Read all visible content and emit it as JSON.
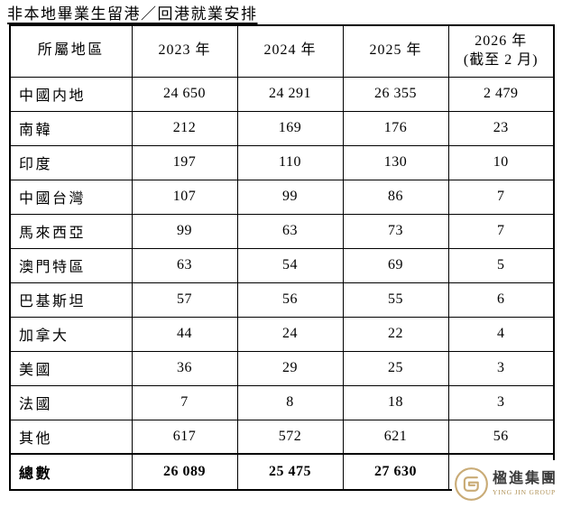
{
  "title": "非本地畢業生留港／回港就業安排",
  "table": {
    "header": {
      "region": "所屬地區",
      "y2023": "2023 年",
      "y2024": "2024 年",
      "y2025": "2025 年",
      "y2026_line1": "2026 年",
      "y2026_line2": "(截至 2 月)"
    },
    "rows": [
      {
        "region": "中國内地",
        "values": [
          "24 650",
          "24 291",
          "26 355",
          "2 479"
        ]
      },
      {
        "region": "南韓",
        "values": [
          "212",
          "169",
          "176",
          "23"
        ]
      },
      {
        "region": "印度",
        "values": [
          "197",
          "110",
          "130",
          "10"
        ]
      },
      {
        "region": "中國台灣",
        "values": [
          "107",
          "99",
          "86",
          "7"
        ]
      },
      {
        "region": "馬來西亞",
        "values": [
          "99",
          "63",
          "73",
          "7"
        ]
      },
      {
        "region": "澳門特區",
        "values": [
          "63",
          "54",
          "69",
          "5"
        ]
      },
      {
        "region": "巴基斯坦",
        "values": [
          "57",
          "56",
          "55",
          "6"
        ]
      },
      {
        "region": "加拿大",
        "values": [
          "44",
          "24",
          "22",
          "4"
        ]
      },
      {
        "region": "美國",
        "values": [
          "36",
          "29",
          "25",
          "3"
        ]
      },
      {
        "region": "法國",
        "values": [
          "7",
          "8",
          "18",
          "3"
        ]
      },
      {
        "region": "其他",
        "values": [
          "617",
          "572",
          "621",
          "56"
        ]
      }
    ],
    "total": {
      "label": "總數",
      "values": [
        "26 089",
        "25 475",
        "27 630",
        ""
      ]
    }
  },
  "logo": {
    "name_zh": "楹進集團",
    "name_en": "YING JIN GROUP",
    "gold_color": "#c9ab76",
    "text_color": "#3c3c3c",
    "en_color": "#b09257"
  }
}
